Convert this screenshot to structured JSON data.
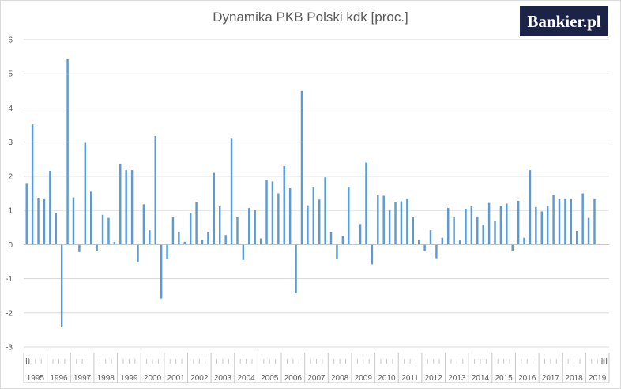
{
  "logo_text": "Bankier.pl",
  "chart_data": {
    "type": "bar",
    "title": "Dynamika PKB Polski kdk [proc.]",
    "xlabel": "",
    "ylabel": "",
    "ylim": [
      -3,
      6
    ],
    "y_ticks": [
      6,
      5,
      4,
      3,
      2,
      1,
      0,
      -1,
      -2,
      -3
    ],
    "grid": true,
    "bar_color": "#5b9bd5",
    "grid_color": "#d9d9d9",
    "years": [
      "1995",
      "1996",
      "1997",
      "1998",
      "1999",
      "2000",
      "2001",
      "2002",
      "2003",
      "2004",
      "2005",
      "2006",
      "2007",
      "2008",
      "2009",
      "2010",
      "2011",
      "2012",
      "2013",
      "2014",
      "2015",
      "2016",
      "2017",
      "2018",
      "2019"
    ],
    "quarters_per_year": 4,
    "axis_marks": [
      "II",
      "III"
    ],
    "values": [
      1.78,
      3.52,
      1.35,
      1.33,
      2.16,
      0.92,
      -2.42,
      5.42,
      1.38,
      -0.22,
      2.98,
      1.55,
      -0.18,
      0.87,
      0.78,
      0.08,
      2.35,
      2.18,
      2.18,
      -0.52,
      1.18,
      0.42,
      3.18,
      -1.58,
      -0.42,
      0.8,
      0.37,
      0.08,
      0.93,
      1.25,
      0.13,
      0.37,
      2.1,
      1.12,
      0.28,
      3.1,
      0.8,
      -0.45,
      1.07,
      1.02,
      0.18,
      1.88,
      1.85,
      1.5,
      2.3,
      1.65,
      -1.43,
      4.5,
      1.15,
      1.68,
      1.32,
      1.97,
      0.37,
      -0.43,
      0.25,
      1.68,
      0.03,
      0.6,
      2.4,
      -0.58,
      1.45,
      1.43,
      1.0,
      1.25,
      1.27,
      1.33,
      0.8,
      0.13,
      -0.2,
      0.42,
      -0.4,
      0.2,
      1.07,
      0.8,
      0.12,
      1.05,
      1.12,
      0.82,
      0.58,
      1.22,
      0.68,
      1.13,
      1.2,
      -0.2,
      1.28,
      0.2,
      2.18,
      1.1,
      0.97,
      1.13,
      1.45,
      1.33,
      1.33,
      1.33,
      0.4,
      1.5,
      0.78,
      1.33
    ]
  }
}
